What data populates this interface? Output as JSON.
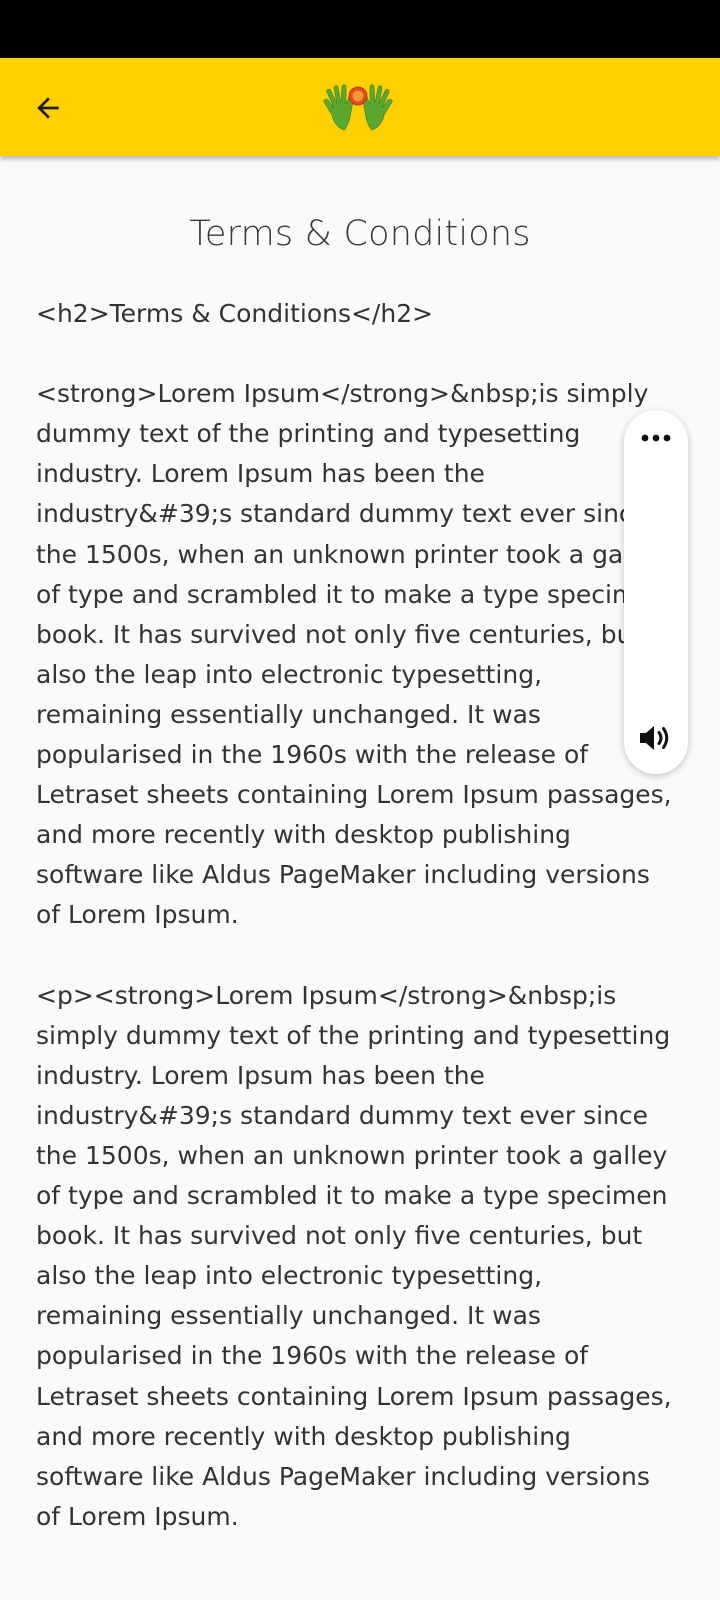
{
  "page": {
    "title": "Terms & Conditions"
  },
  "header": {
    "back_icon": "arrow-left-icon",
    "logo_icon": "hands-logo-icon",
    "background_color": "#ffd000"
  },
  "content": {
    "body": "<h2>Terms & Conditions</h2>\n\n<strong>Lorem Ipsum</strong>&nbsp;is simply dummy text of the printing and typesetting industry. Lorem Ipsum has been the industry&#39;s standard dummy text ever since the 1500s, when an unknown printer took a galley of type and scrambled it to make a type specimen book. It has survived not only five centuries, but also the leap into electronic typesetting, remaining essentially unchanged. It was popularised in the 1960s with the release of Letraset sheets containing Lorem Ipsum passages, and more recently with desktop publishing software like Aldus PageMaker including versions of Lorem Ipsum.\n\n<p><strong>Lorem Ipsum</strong>&nbsp;is simply dummy text of the printing and typesetting industry. Lorem Ipsum has been the industry&#39;s standard dummy text ever since the 1500s, when an unknown printer took a galley of type and scrambled it to make a type specimen book. It has survived not only five centuries, but also the leap into electronic typesetting, remaining essentially unchanged. It was popularised in the 1960s with the release of Letraset sheets containing Lorem Ipsum passages, and more recently with desktop publishing software like Aldus PageMaker including versions of Lorem Ipsum."
  },
  "floating_panel": {
    "more_icon": "more-horizontal-icon",
    "speaker_icon": "speaker-icon"
  }
}
